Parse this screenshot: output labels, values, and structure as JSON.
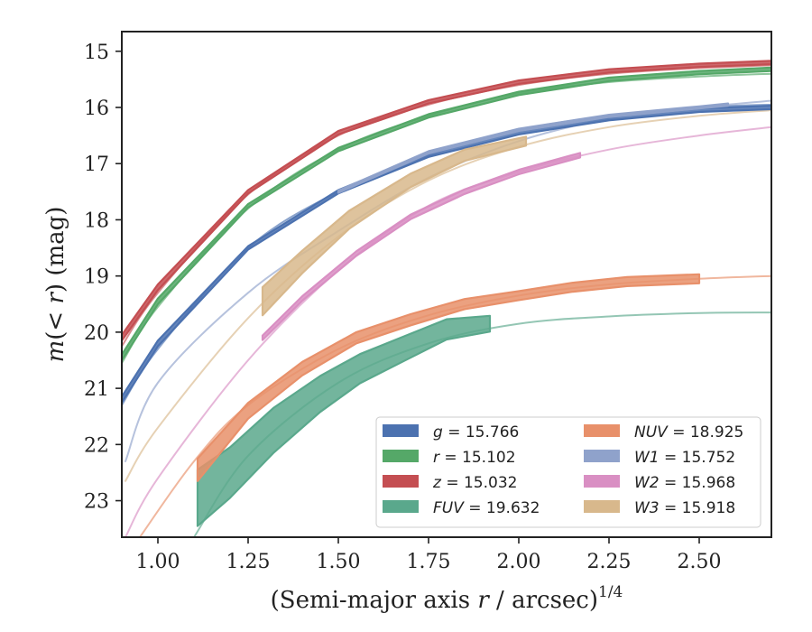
{
  "chart_data": {
    "type": "line",
    "xlabel": "(Semi-major axis r / arcsec)^1/4",
    "ylabel": "m(< r) (mag)",
    "xlim": [
      0.9,
      2.7
    ],
    "ylim": [
      23.65,
      14.65
    ],
    "y_inverted": true,
    "grid": false,
    "legend_position": "lower-right",
    "x_ticks": [
      1.0,
      1.25,
      1.5,
      1.75,
      2.0,
      2.25,
      2.5
    ],
    "x_tick_labels": [
      "1.00",
      "1.25",
      "1.50",
      "1.75",
      "2.00",
      "2.25",
      "2.50"
    ],
    "y_ticks": [
      15,
      16,
      17,
      18,
      19,
      20,
      21,
      22,
      23
    ],
    "y_tick_labels": [
      "15",
      "16",
      "17",
      "18",
      "19",
      "20",
      "21",
      "22",
      "23"
    ],
    "series": [
      {
        "name": "g = 15.766",
        "legend_var": "g",
        "legend_value": "15.766",
        "color": "#4c72b0",
        "model": {
          "x": [
            0.9,
            1.0,
            1.25,
            1.5,
            1.75,
            2.0,
            2.25,
            2.5,
            2.7
          ],
          "y": [
            21.3,
            20.3,
            18.5,
            17.5,
            16.85,
            16.4,
            16.15,
            16.0,
            15.95
          ]
        },
        "observed": {
          "x": [
            0.9,
            1.0,
            1.25,
            1.5,
            1.75,
            2.0,
            2.25,
            2.5,
            2.7
          ],
          "y": [
            21.2,
            20.2,
            18.5,
            17.5,
            16.85,
            16.45,
            16.2,
            16.05,
            16.0
          ],
          "err": [
            0.05,
            0.05,
            0.03,
            0.03,
            0.03,
            0.03,
            0.03,
            0.03,
            0.03
          ]
        }
      },
      {
        "name": "r = 15.102",
        "legend_var": "r",
        "legend_value": "15.102",
        "color": "#55a868",
        "model": {
          "x": [
            0.9,
            1.0,
            1.25,
            1.5,
            1.75,
            2.0,
            2.25,
            2.5,
            2.7
          ],
          "y": [
            20.55,
            19.55,
            17.8,
            16.75,
            16.15,
            15.75,
            15.55,
            15.45,
            15.4
          ]
        },
        "observed": {
          "x": [
            0.9,
            1.0,
            1.25,
            1.5,
            1.75,
            2.0,
            2.25,
            2.5,
            2.7
          ],
          "y": [
            20.45,
            19.45,
            17.75,
            16.75,
            16.15,
            15.75,
            15.5,
            15.38,
            15.32
          ],
          "err": [
            0.05,
            0.05,
            0.03,
            0.03,
            0.03,
            0.03,
            0.03,
            0.03,
            0.03
          ]
        }
      },
      {
        "name": "z = 15.032",
        "legend_var": "z",
        "legend_value": "15.032",
        "color": "#c44e52",
        "model": {
          "x": [
            0.9,
            1.0,
            1.25,
            1.5,
            1.75,
            2.0,
            2.25,
            2.5,
            2.7
          ],
          "y": [
            20.25,
            19.3,
            17.55,
            16.5,
            15.95,
            15.6,
            15.4,
            15.3,
            15.25
          ]
        },
        "observed": {
          "x": [
            0.9,
            1.0,
            1.25,
            1.5,
            1.75,
            2.0,
            2.25,
            2.5,
            2.7
          ],
          "y": [
            20.1,
            19.2,
            17.5,
            16.45,
            15.9,
            15.55,
            15.35,
            15.25,
            15.2
          ],
          "err": [
            0.05,
            0.05,
            0.03,
            0.03,
            0.03,
            0.03,
            0.03,
            0.03,
            0.03
          ]
        }
      },
      {
        "name": "FUV = 19.632",
        "legend_var": "FUV",
        "legend_value": "19.632",
        "color": "#5aa88c",
        "model": {
          "x": [
            1.1,
            1.25,
            1.5,
            1.75,
            2.0,
            2.25,
            2.5,
            2.7
          ],
          "y": [
            23.65,
            22.2,
            20.9,
            20.2,
            19.85,
            19.72,
            19.66,
            19.65
          ]
        },
        "observed": {
          "x": [
            1.11,
            1.2,
            1.32,
            1.45,
            1.56,
            1.68,
            1.8,
            1.92
          ],
          "y": [
            22.95,
            22.5,
            21.75,
            21.1,
            20.65,
            20.3,
            19.95,
            19.85
          ],
          "err": [
            0.5,
            0.45,
            0.4,
            0.32,
            0.26,
            0.22,
            0.18,
            0.14
          ]
        }
      },
      {
        "name": "NUV = 18.925",
        "legend_var": "NUV",
        "legend_value": "18.925",
        "color": "#e8906a",
        "model": {
          "x": [
            0.95,
            1.1,
            1.25,
            1.5,
            1.75,
            2.0,
            2.25,
            2.5,
            2.7
          ],
          "y": [
            23.65,
            22.3,
            21.3,
            20.3,
            19.7,
            19.35,
            19.15,
            19.05,
            19.0
          ]
        },
        "observed": {
          "x": [
            1.11,
            1.25,
            1.4,
            1.55,
            1.7,
            1.85,
            2.0,
            2.15,
            2.3,
            2.5
          ],
          "y": [
            22.45,
            21.4,
            20.65,
            20.1,
            19.78,
            19.5,
            19.35,
            19.2,
            19.1,
            19.05
          ],
          "err": [
            0.2,
            0.14,
            0.12,
            0.1,
            0.1,
            0.09,
            0.08,
            0.08,
            0.08,
            0.08
          ]
        }
      },
      {
        "name": "W1 = 15.752",
        "legend_var": "W1",
        "legend_value": "15.752",
        "color": "#8fa2cb",
        "model": {
          "x": [
            0.91,
            1.0,
            1.25,
            1.5,
            1.75,
            2.0,
            2.25,
            2.5,
            2.7
          ],
          "y": [
            22.3,
            20.9,
            19.3,
            18.2,
            17.25,
            16.6,
            16.2,
            16.0,
            15.88
          ]
        },
        "observed": {
          "x": [
            1.5,
            1.75,
            2.0,
            2.25,
            2.5,
            2.58
          ],
          "y": [
            17.5,
            16.8,
            16.4,
            16.15,
            16.0,
            15.95
          ],
          "err": [
            0.02,
            0.02,
            0.02,
            0.02,
            0.02,
            0.02
          ]
        }
      },
      {
        "name": "W2 = 15.968",
        "legend_var": "W2",
        "legend_value": "15.968",
        "color": "#d98fc3",
        "model": {
          "x": [
            0.91,
            1.0,
            1.25,
            1.5,
            1.75,
            2.0,
            2.25,
            2.5,
            2.7
          ],
          "y": [
            23.65,
            22.6,
            20.5,
            18.9,
            17.75,
            17.15,
            16.75,
            16.5,
            16.35
          ]
        },
        "observed": {
          "x": [
            1.29,
            1.4,
            1.55,
            1.7,
            1.85,
            2.0,
            2.17
          ],
          "y": [
            20.1,
            19.4,
            18.6,
            17.95,
            17.5,
            17.15,
            16.85
          ],
          "err": [
            0.04,
            0.04,
            0.04,
            0.04,
            0.04,
            0.04,
            0.04
          ]
        }
      },
      {
        "name": "W3 = 15.918",
        "legend_var": "W3",
        "legend_value": "15.918",
        "color": "#d8b88c",
        "model": {
          "x": [
            0.91,
            1.0,
            1.25,
            1.5,
            1.75,
            2.0,
            2.25,
            2.5,
            2.7
          ],
          "y": [
            22.65,
            21.7,
            19.75,
            18.3,
            17.3,
            16.7,
            16.35,
            16.15,
            16.05
          ]
        },
        "observed": {
          "x": [
            1.29,
            1.4,
            1.53,
            1.7,
            1.85,
            2.02
          ],
          "y": [
            19.45,
            18.75,
            18.0,
            17.3,
            16.85,
            16.6
          ],
          "err": [
            0.25,
            0.2,
            0.16,
            0.12,
            0.1,
            0.08
          ]
        }
      }
    ]
  }
}
